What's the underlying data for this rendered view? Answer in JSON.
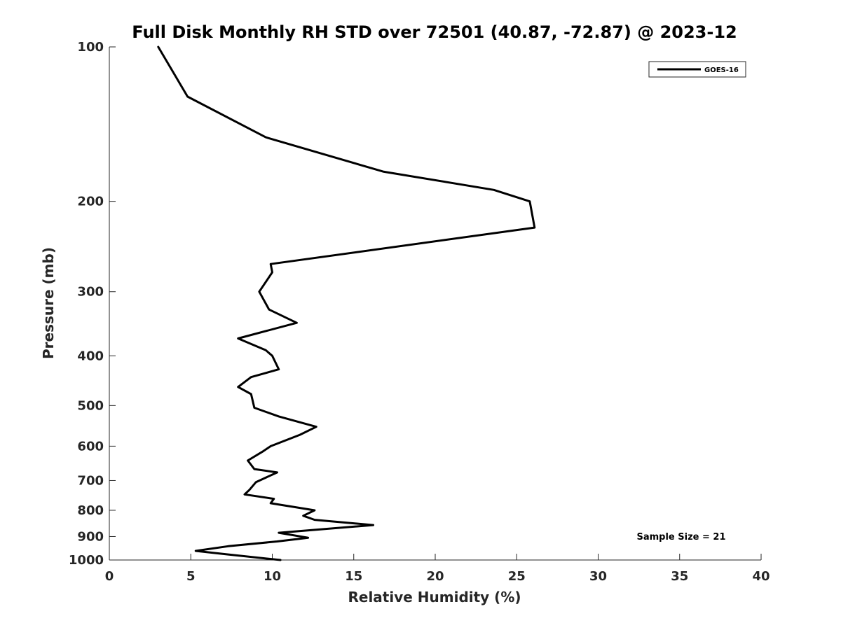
{
  "chart_data": {
    "type": "line",
    "title": "Full Disk Monthly RH STD over 72501 (40.87, -72.87) @ 2023-12",
    "xlabel": "Relative Humidity (%)",
    "ylabel": "Pressure (mb)",
    "xlim": [
      0,
      40
    ],
    "ylim": [
      100,
      1000
    ],
    "y_scale": "log",
    "y_reversed": true,
    "grid": false,
    "legend_position": "top-right",
    "x_ticks": [
      0,
      5,
      10,
      15,
      20,
      25,
      30,
      35,
      40
    ],
    "x_tick_labels": [
      "0",
      "5",
      "10",
      "15",
      "20",
      "25",
      "30",
      "35",
      "40"
    ],
    "y_ticks": [
      100,
      200,
      300,
      400,
      500,
      600,
      700,
      800,
      900,
      1000
    ],
    "y_tick_labels": [
      "100",
      "200",
      "300",
      "400",
      "500",
      "600",
      "700",
      "800",
      "900",
      "1000"
    ],
    "series": [
      {
        "name": "GOES-16",
        "color": "#000000",
        "x": [
          3.0,
          4.8,
          9.6,
          16.8,
          23.6,
          25.8,
          26.1,
          9.9,
          10.0,
          9.2,
          9.8,
          11.5,
          7.9,
          9.6,
          10.0,
          10.4,
          8.7,
          7.9,
          8.7,
          8.9,
          10.4,
          12.7,
          11.7,
          9.9,
          9.4,
          8.5,
          8.9,
          10.3,
          9.0,
          8.6,
          8.3,
          10.1,
          9.9,
          12.6,
          11.9,
          12.6,
          16.2,
          10.4,
          12.2,
          10.3,
          7.3,
          5.3,
          7.2,
          10.5
        ],
        "y": [
          100,
          125,
          150,
          175,
          190,
          200,
          225,
          265,
          275,
          300,
          325,
          345,
          370,
          390,
          400,
          425,
          440,
          460,
          475,
          505,
          525,
          550,
          570,
          600,
          615,
          640,
          665,
          675,
          705,
          730,
          745,
          760,
          775,
          800,
          820,
          835,
          855,
          885,
          905,
          920,
          940,
          960,
          975,
          1000
        ]
      }
    ],
    "annotation": "Sample Size = 21"
  }
}
